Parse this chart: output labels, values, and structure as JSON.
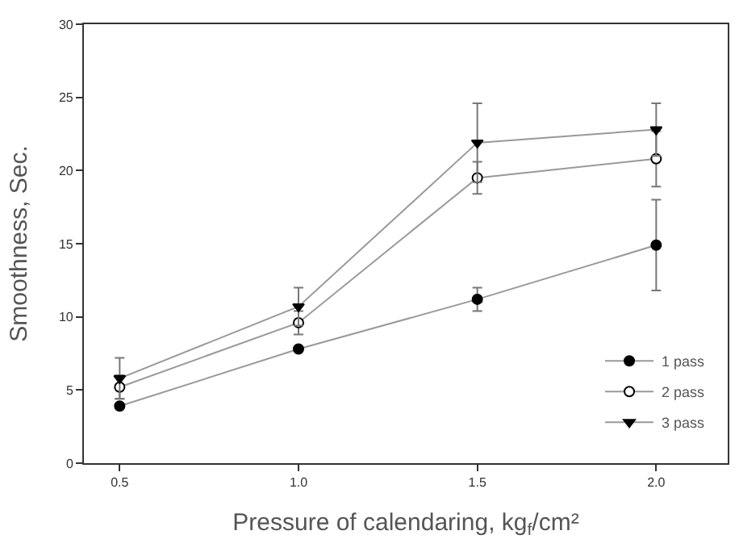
{
  "chart_data": {
    "type": "line",
    "xlabel": "Pressure of calendaring, kg$_{f}$/cm²",
    "ylabel": "Smoothness, Sec.",
    "x": [
      0.5,
      1.0,
      1.5,
      2.0
    ],
    "series": [
      {
        "name": "1 pass",
        "color": "#000000",
        "marker": "circle",
        "values": [
          3.9,
          7.8,
          11.2,
          14.9
        ],
        "errors": [
          null,
          null,
          0.8,
          3.1
        ]
      },
      {
        "name": "2 pass",
        "color": "#ffffff",
        "marker": "circle",
        "values": [
          5.2,
          9.6,
          19.5,
          20.8
        ],
        "errors": [
          0.8,
          0.8,
          1.1,
          1.9
        ]
      },
      {
        "name": "3 pass",
        "color": "#000000",
        "marker": "triangle",
        "values": [
          5.8,
          10.7,
          21.9,
          22.8
        ],
        "errors": [
          1.4,
          1.3,
          2.7,
          1.8
        ]
      }
    ],
    "xlim": [
      0.4,
      2.2
    ],
    "ylim": [
      0,
      30
    ],
    "xticks": [
      0.5,
      {
        "value": 1.0,
        "label": "1.0"
      },
      1.5,
      {
        "value": 2.0,
        "label": "2.0"
      }
    ],
    "yticks": [
      0,
      5,
      10,
      15,
      20,
      25,
      30
    ],
    "legend": "bottom right",
    "line_style": "solid"
  }
}
